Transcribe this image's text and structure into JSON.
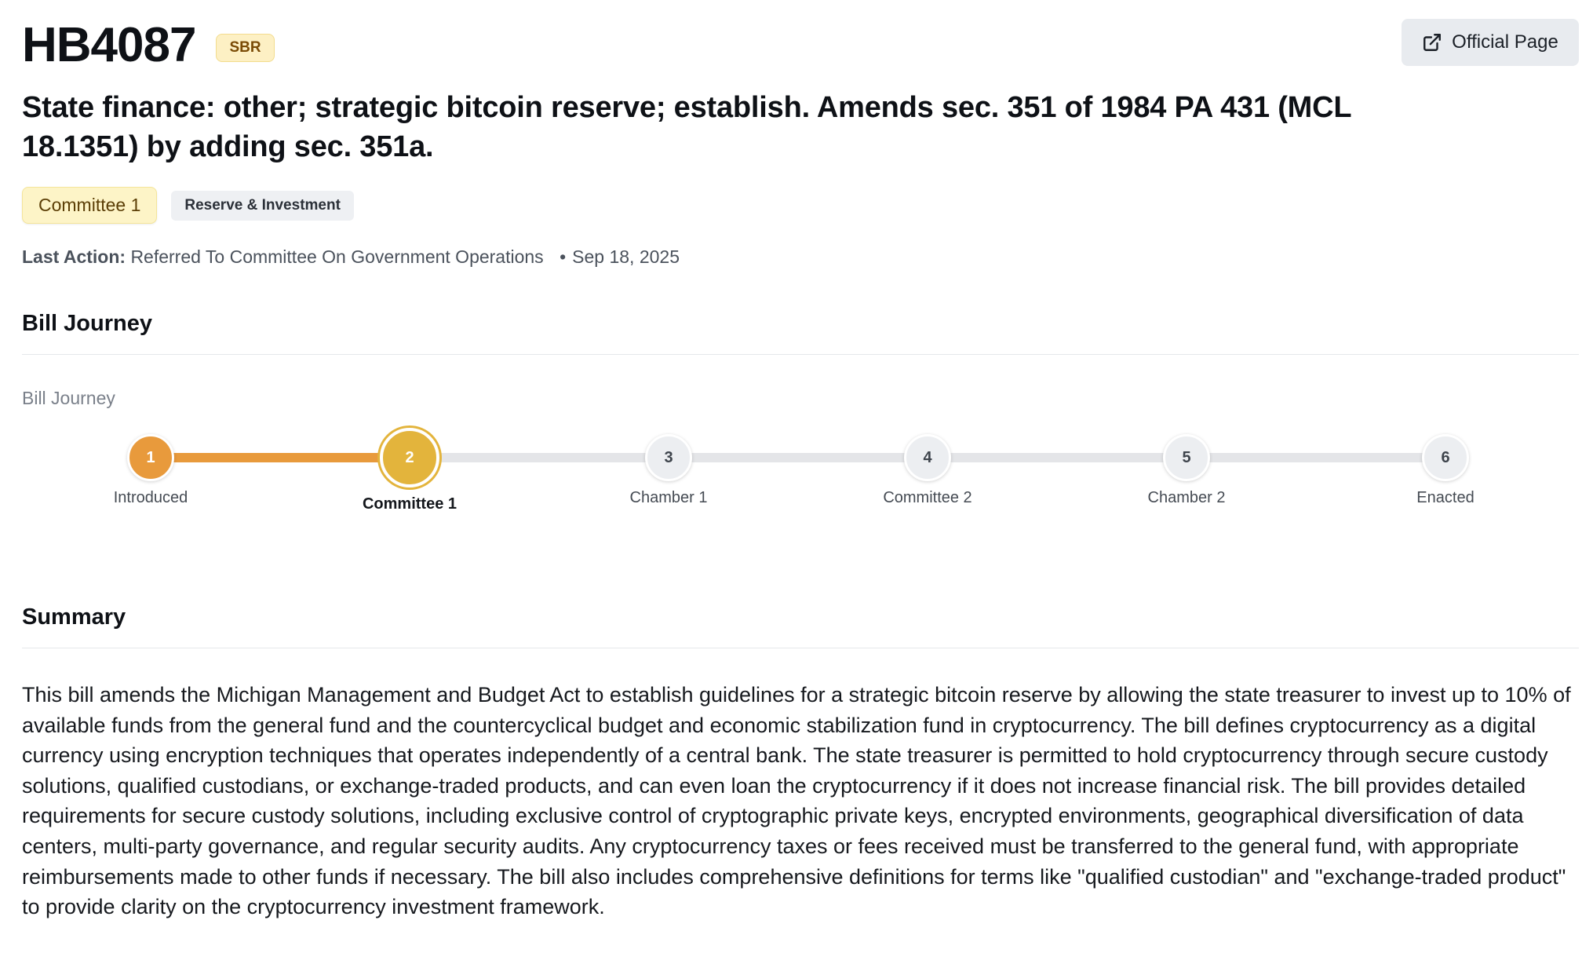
{
  "header": {
    "bill_id": "HB4087",
    "tag": "SBR",
    "official_button_label": "Official Page",
    "title": "State finance: other; strategic bitcoin reserve; establish. Amends sec. 351 of 1984 PA 431 (MCL 18.1351) by adding sec. 351a."
  },
  "chips": {
    "status": "Committee 1",
    "topic": "Reserve & Investment"
  },
  "last_action": {
    "label": "Last Action:",
    "text": "Referred To Committee On Government Operations",
    "date": "Sep 18, 2025"
  },
  "journey": {
    "heading": "Bill Journey",
    "subheading": "Bill Journey",
    "current_step": 2,
    "steps": [
      {
        "number": "1",
        "label": "Introduced",
        "state": "done"
      },
      {
        "number": "2",
        "label": "Committee 1",
        "state": "current"
      },
      {
        "number": "3",
        "label": "Chamber 1",
        "state": "pending"
      },
      {
        "number": "4",
        "label": "Committee 2",
        "state": "pending"
      },
      {
        "number": "5",
        "label": "Chamber 2",
        "state": "pending"
      },
      {
        "number": "6",
        "label": "Enacted",
        "state": "pending"
      }
    ]
  },
  "summary": {
    "heading": "Summary",
    "text": "This bill amends the Michigan Management and Budget Act to establish guidelines for a strategic bitcoin reserve by allowing the state treasurer to invest up to 10% of available funds from the general fund and the countercyclical budget and economic stabilization fund in cryptocurrency. The bill defines cryptocurrency as a digital currency using encryption techniques that operates independently of a central bank. The state treasurer is permitted to hold cryptocurrency through secure custody solutions, qualified custodians, or exchange-traded products, and can even loan the cryptocurrency if it does not increase financial risk. The bill provides detailed requirements for secure custody solutions, including exclusive control of cryptographic private keys, encrypted environments, geographical diversification of data centers, multi-party governance, and regular security audits. Any cryptocurrency taxes or fees received must be transferred to the general fund, with appropriate reimbursements made to other funds if necessary. The bill also includes comprehensive definitions for terms like \"qualified custodian\" and \"exchange-traded product\" to provide clarity on the cryptocurrency investment framework."
  },
  "colors": {
    "done": "#e89a3c",
    "current": "#e3b43c",
    "pending": "#eceef1"
  },
  "icons": {
    "official_button": "external-link-icon"
  }
}
